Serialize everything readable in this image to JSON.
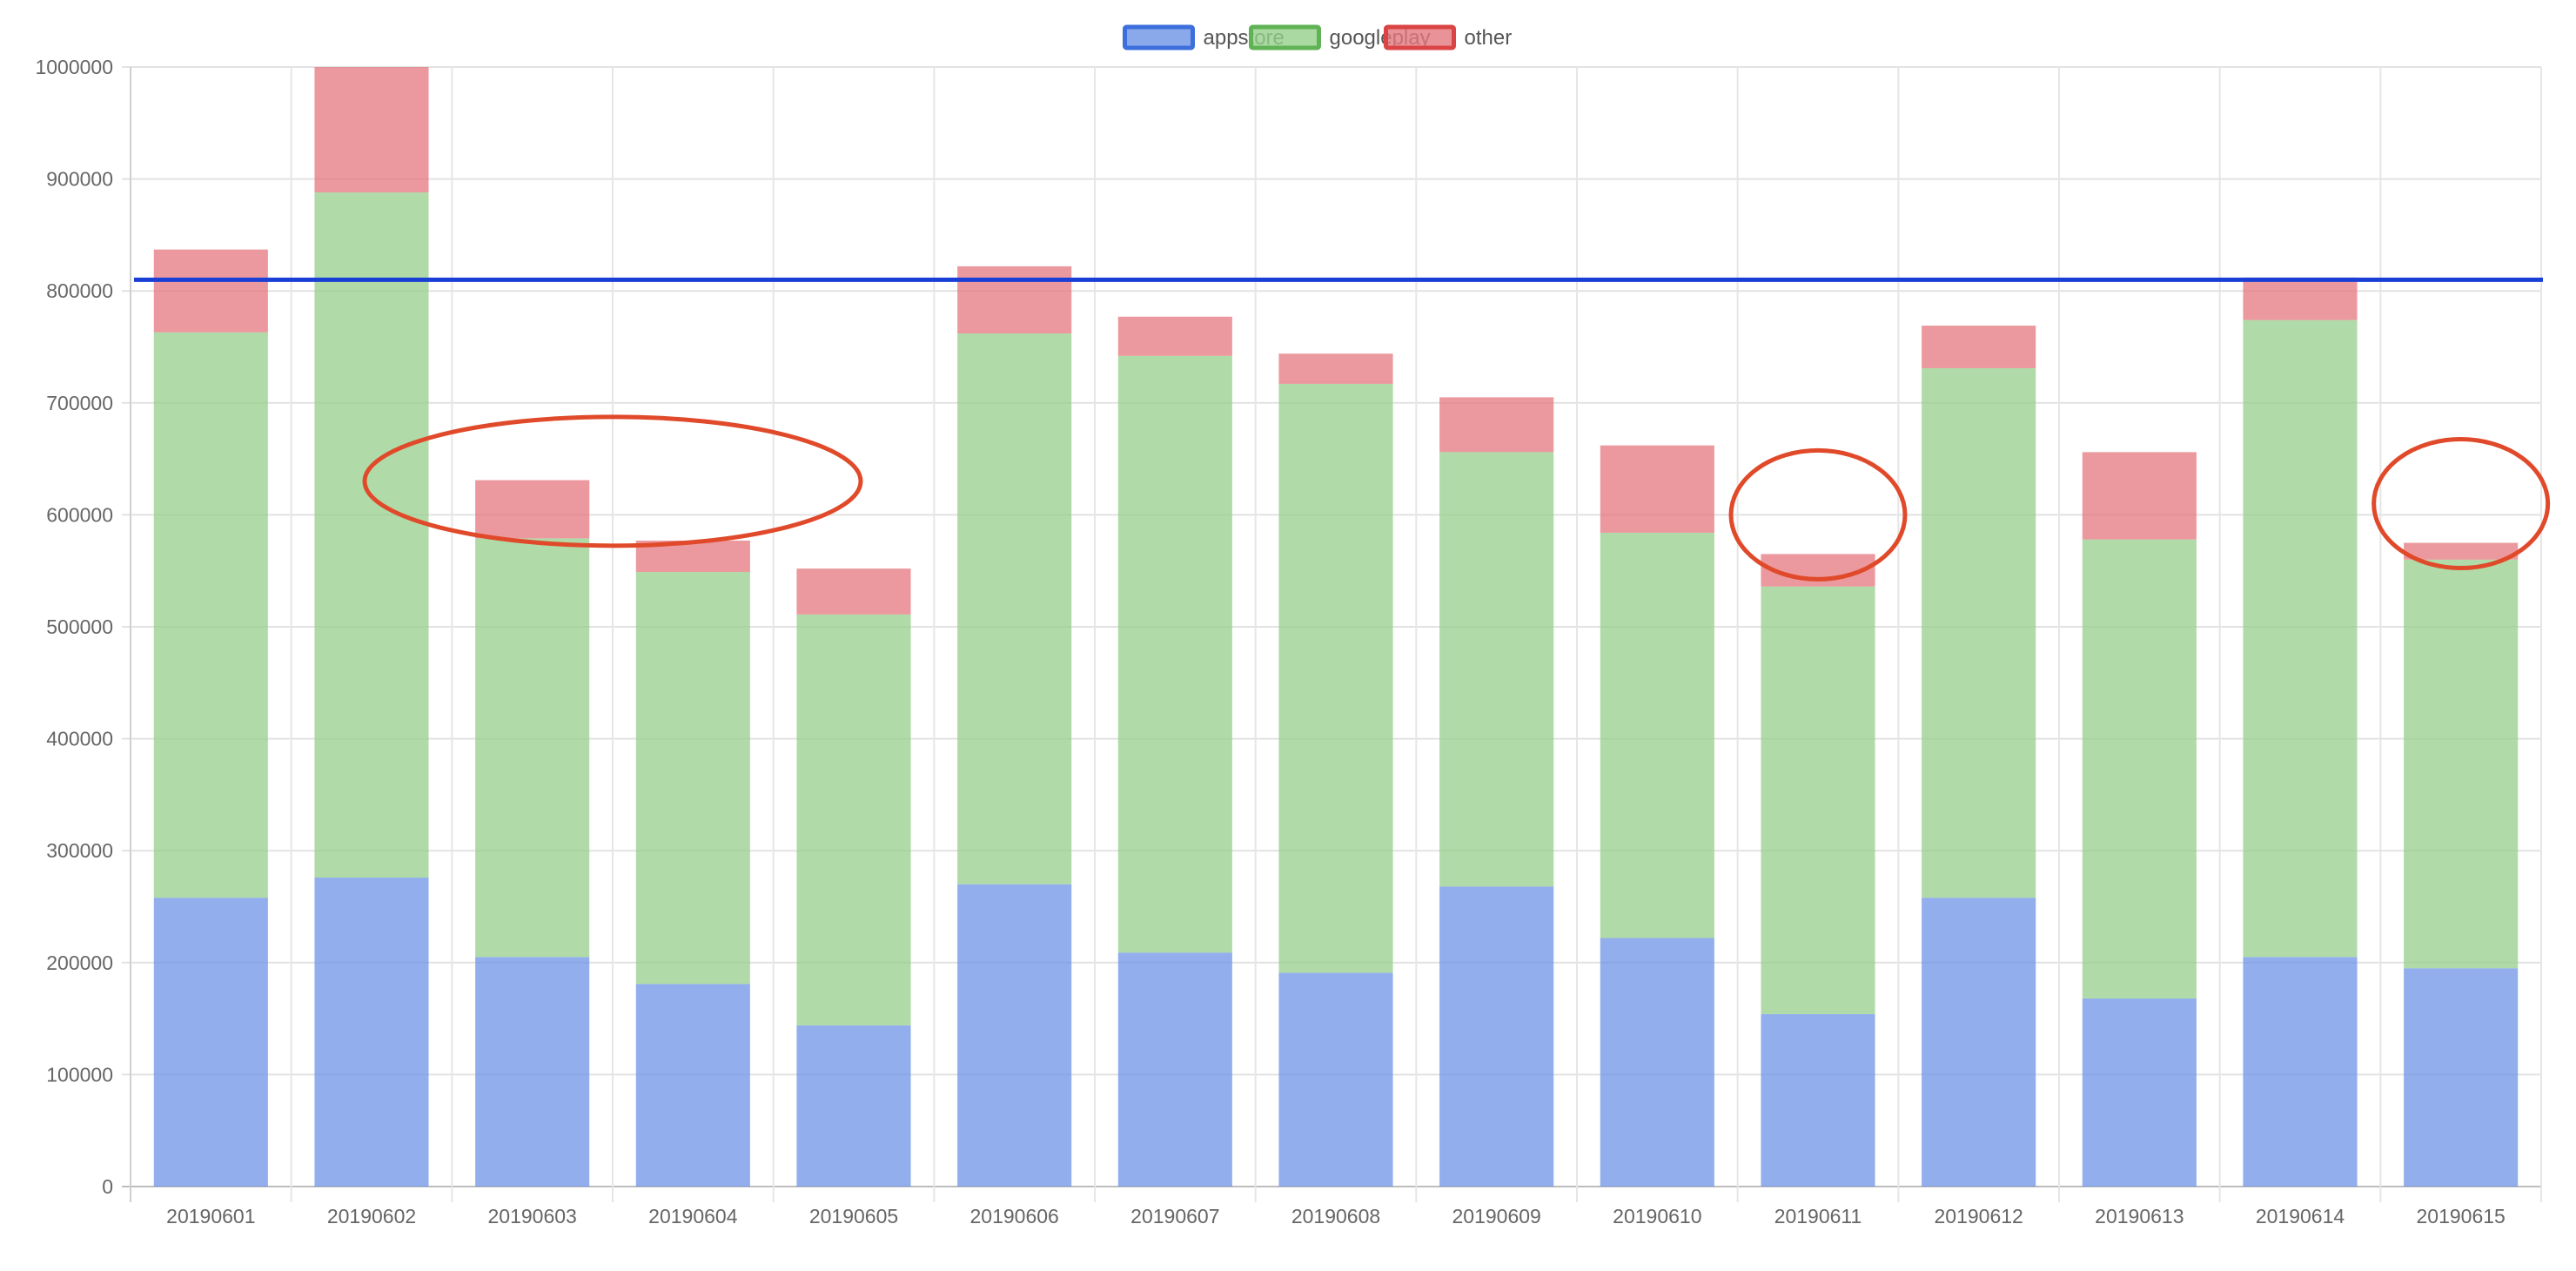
{
  "chart_data": {
    "type": "bar",
    "stacked": true,
    "categories": [
      "20190601",
      "20190602",
      "20190603",
      "20190604",
      "20190605",
      "20190606",
      "20190607",
      "20190608",
      "20190609",
      "20190610",
      "20190611",
      "20190612",
      "20190613",
      "20190614",
      "20190615"
    ],
    "series": [
      {
        "name": "appstore",
        "color": "#6d93e6",
        "border_color": "#3c6fdc",
        "values": [
          258000,
          276000,
          205000,
          181000,
          144000,
          270000,
          209000,
          191000,
          268000,
          222000,
          154000,
          258000,
          168000,
          205000,
          195000
        ]
      },
      {
        "name": "googleplay",
        "color": "#95cf8b",
        "border_color": "#5fb355",
        "values": [
          505000,
          612000,
          374000,
          368000,
          367000,
          492000,
          533000,
          526000,
          388000,
          362000,
          382000,
          473000,
          410000,
          569000,
          365000
        ]
      },
      {
        "name": "other",
        "color": "#e4777d",
        "border_color": "#db4444",
        "values": [
          74000,
          112000,
          52000,
          28000,
          41000,
          60000,
          35000,
          27000,
          49000,
          78000,
          29000,
          38000,
          78000,
          38000,
          15000
        ]
      }
    ],
    "ylim": [
      0,
      1000000
    ],
    "yticks": [
      0,
      100000,
      200000,
      300000,
      400000,
      500000,
      600000,
      700000,
      800000,
      900000,
      1000000
    ],
    "ytick_labels": [
      "0",
      "100000",
      "200000",
      "300000",
      "400000",
      "500000",
      "600000",
      "700000",
      "800000",
      "900000",
      "1000000"
    ],
    "reference_line": {
      "value": 810000,
      "color": "#1a3fd6"
    },
    "highlight_circles": [
      {
        "categories": [
          "20190603",
          "20190604"
        ],
        "center_value": 630000,
        "color": "#e04a2a"
      },
      {
        "categories": [
          "20190611"
        ],
        "center_value": 600000,
        "color": "#e04a2a"
      },
      {
        "categories": [
          "20190615"
        ],
        "center_value": 610000,
        "color": "#e04a2a"
      }
    ],
    "grid": true,
    "legend_position": "top",
    "title": "",
    "xlabel": "",
    "ylabel": ""
  }
}
